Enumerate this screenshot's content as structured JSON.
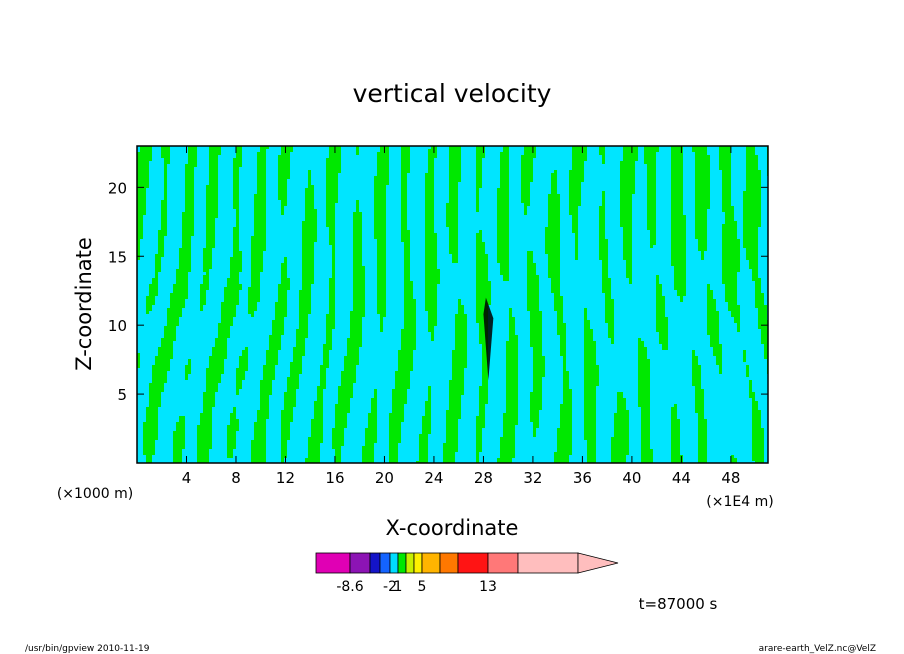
{
  "colors": {
    "background": "#ffffff",
    "frame": "#000000",
    "contour_line": "#000000"
  },
  "chart_data": {
    "type": "heatmap",
    "title": "vertical velocity",
    "xlabel": "X-coordinate",
    "ylabel": "Z-coordinate",
    "x_unit_left": "(×1000 m)",
    "x_unit_right": "(×1E4 m)",
    "xlim": [
      0,
      51
    ],
    "ylim": [
      0,
      23
    ],
    "xticks": [
      4,
      8,
      12,
      16,
      20,
      24,
      28,
      32,
      36,
      40,
      44,
      48
    ],
    "yticks": [
      5,
      10,
      15,
      20
    ],
    "dominant_levels": [
      {
        "range": "-2..1",
        "color": "#00e5ff"
      },
      {
        "range": "1..2",
        "color": "#00e800"
      }
    ],
    "colorbar": {
      "segments": [
        {
          "color": "#e000b4"
        },
        {
          "color": "#8c14b4"
        },
        {
          "color": "#1414c8"
        },
        {
          "color": "#1464ff"
        },
        {
          "color": "#00dcff"
        },
        {
          "color": "#00e800"
        },
        {
          "color": "#c8f000"
        },
        {
          "color": "#fff000"
        },
        {
          "color": "#ffb400"
        },
        {
          "color": "#ff7800"
        },
        {
          "color": "#ff1414"
        },
        {
          "color": "#ff7878"
        },
        {
          "color": "#ffbebe"
        }
      ],
      "labels": [
        "-8.6",
        "-2",
        "1",
        "5",
        "13"
      ]
    },
    "annotation": "t=87000 s"
  },
  "footer": {
    "left": "/usr/bin/gpview   2010-11-19",
    "right": "arare-earth_VelZ.nc@VelZ"
  }
}
